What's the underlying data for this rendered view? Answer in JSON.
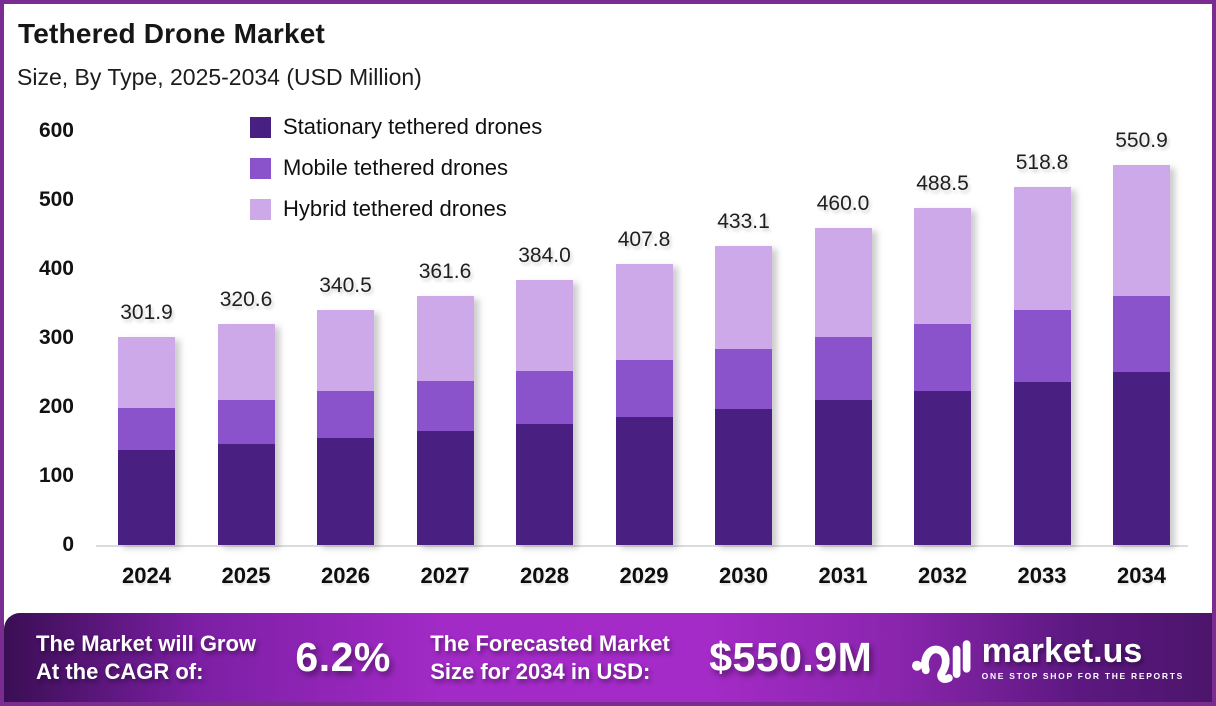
{
  "header": {
    "title": "Tethered Drone Market",
    "subtitle": "Size, By Type, 2025-2034 (USD Million)"
  },
  "chart_data": {
    "type": "bar",
    "stacked": true,
    "title": "Tethered Drone Market Size, By Type, 2025-2034 (USD Million)",
    "categories": [
      "2024",
      "2025",
      "2026",
      "2027",
      "2028",
      "2029",
      "2030",
      "2031",
      "2032",
      "2033",
      "2034"
    ],
    "series": [
      {
        "name": "Stationary tethered drones",
        "color": "#4a1f82",
        "values": [
          137.7,
          146.2,
          155.3,
          164.9,
          175.1,
          186.0,
          197.5,
          209.8,
          222.8,
          236.6,
          251.2
        ]
      },
      {
        "name": "Mobile tethered drones",
        "color": "#8b53cb",
        "values": [
          60.4,
          64.1,
          68.1,
          72.3,
          76.8,
          81.6,
          86.6,
          92.0,
          97.7,
          103.8,
          110.2
        ]
      },
      {
        "name": "Hybrid tethered drones",
        "color": "#cea9e9",
        "values": [
          103.8,
          110.3,
          117.1,
          124.4,
          132.1,
          140.2,
          149.0,
          158.2,
          168.0,
          178.4,
          189.5
        ]
      }
    ],
    "totals": [
      301.9,
      320.6,
      340.5,
      361.6,
      384.0,
      407.8,
      433.1,
      460.0,
      488.5,
      518.8,
      550.9
    ],
    "total_labels": [
      "301.9",
      "320.6",
      "340.5",
      "361.6",
      "384.0",
      "407.8",
      "433.1",
      "460.0",
      "488.5",
      "518.8",
      "550.9"
    ],
    "yticks": [
      0,
      100,
      200,
      300,
      400,
      500,
      600
    ],
    "ylim": [
      0,
      600
    ],
    "xlabel": "",
    "ylabel": "",
    "grid": false,
    "legend_position": "top-inside"
  },
  "footer": {
    "cagr_line1": "The Market will Grow",
    "cagr_line2": "At the CAGR of:",
    "cagr_value": "6.2%",
    "forecast_line1": "The Forecasted Market",
    "forecast_line2": "Size for 2034 in USD:",
    "forecast_value": "$550.9M",
    "brand": {
      "name": "market.us",
      "tagline": "ONE STOP SHOP FOR THE REPORTS"
    }
  },
  "colors": {
    "frame_border": "#7b2c91",
    "banner_center": "#a22ac6",
    "banner_edge_left": "#3a0e54",
    "banner_edge_right": "#4c156b"
  }
}
